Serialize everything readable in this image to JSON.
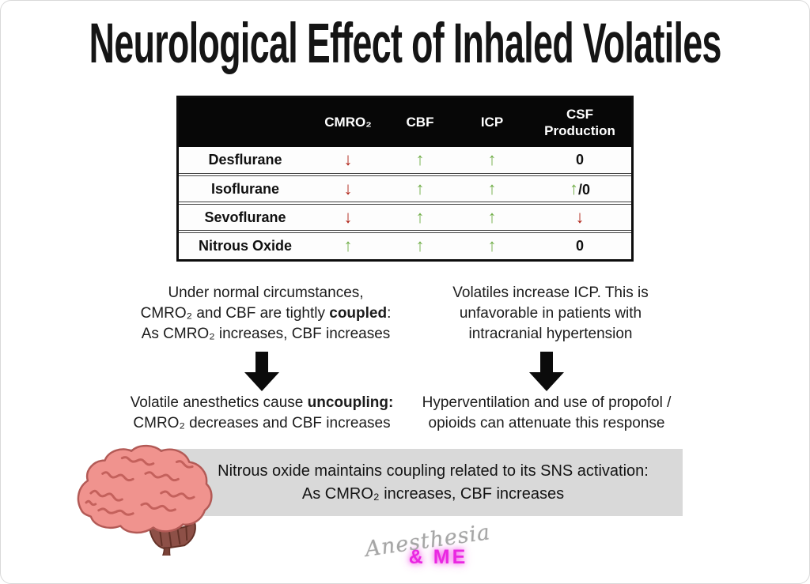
{
  "title": "Neurological Effect of Inhaled Volatiles",
  "table": {
    "col_headers": [
      "CMRO₂",
      "CBF",
      "ICP",
      "CSF\nProduction"
    ],
    "rows": [
      {
        "drug": "Desflurane",
        "cells": [
          "↓",
          "↑",
          "↑",
          "0"
        ]
      },
      {
        "drug": "Isoflurane",
        "cells": [
          "↓",
          "↑",
          "↑",
          "↑/0"
        ]
      },
      {
        "drug": "Sevoflurane",
        "cells": [
          "↓",
          "↑",
          "↑",
          "↓"
        ]
      },
      {
        "drug": "Nitrous Oxide",
        "cells": [
          "↑",
          "↑",
          "↑",
          "0"
        ]
      }
    ]
  },
  "notes": {
    "left_top": [
      {
        "t": "Under normal circumstances,\nCMRO₂ and CBF are tightly "
      },
      {
        "t": "coupled",
        "b": true
      },
      {
        "t": ":\nAs CMRO₂ increases, CBF increases"
      }
    ],
    "right_top": [
      {
        "t": "Volatiles increase ICP. This is\nunfavorable in patients with\nintracranial hypertension"
      }
    ],
    "left_bottom": [
      {
        "t": "Volatile anesthetics cause "
      },
      {
        "t": "uncoupling:",
        "b": true
      },
      {
        "t": "\nCMRO₂ decreases and CBF increases"
      }
    ],
    "right_bottom": [
      {
        "t": "Hyperventilation and use of propofol /\nopioids can attenuate this response"
      }
    ]
  },
  "banner": [
    {
      "t": "Nitrous oxide maintains coupling related to its SNS activation:\nAs CMRO₂ increases, CBF increases"
    }
  ],
  "logo": {
    "script": "Anesthesia",
    "accent": "& ME"
  },
  "colors": {
    "arrow_up_green": "#70ad47",
    "arrow_down_red": "#b02418",
    "header_bg": "#070707",
    "banner_bg": "#d9d9d9",
    "logo_pink": "#ea27e2",
    "logo_gray": "#a6a6a6"
  }
}
